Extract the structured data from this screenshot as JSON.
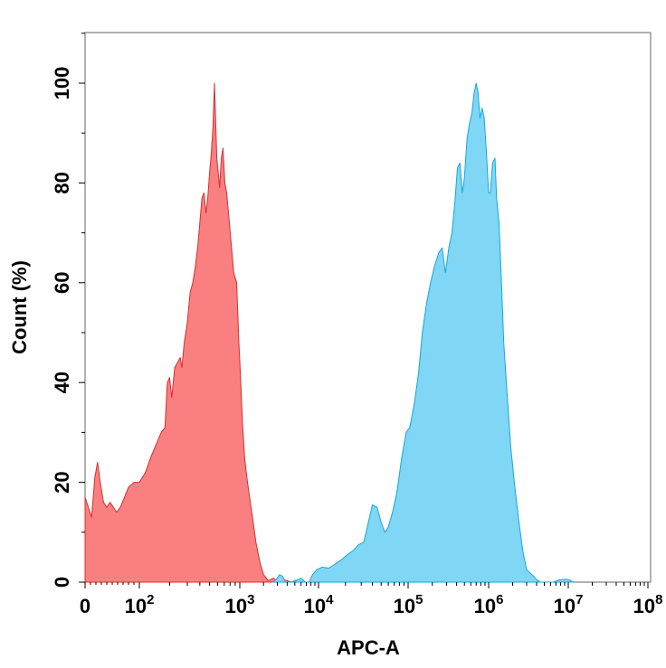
{
  "chart_data": {
    "type": "area",
    "xlabel": "APC-A",
    "ylabel": "Count (%)",
    "x_scale": "biexponential",
    "ylim": [
      0,
      110
    ],
    "grid": false,
    "y_ticks": [
      {
        "value": 0,
        "label": "0"
      },
      {
        "value": 20,
        "label": "20"
      },
      {
        "value": 40,
        "label": "40"
      },
      {
        "value": 60,
        "label": "60"
      },
      {
        "value": 80,
        "label": "80"
      },
      {
        "value": 100,
        "label": "100"
      }
    ],
    "x_ticks": [
      {
        "value": 0,
        "label": "0",
        "exp": ""
      },
      {
        "value": 100,
        "label": "10",
        "exp": "2"
      },
      {
        "value": 1000,
        "label": "10",
        "exp": "3"
      },
      {
        "value": 10000,
        "label": "10",
        "exp": "4"
      },
      {
        "value": 100000,
        "label": "10",
        "exp": "5"
      },
      {
        "value": 1000000,
        "label": "10",
        "exp": "6"
      },
      {
        "value": 10000000,
        "label": "10",
        "exp": "7"
      },
      {
        "value": 100000000,
        "label": "10",
        "exp": "8"
      }
    ],
    "series": [
      {
        "color": "#fa7f80",
        "stroke": "#d62f2f",
        "points": [
          [
            0,
            17
          ],
          [
            6,
            15
          ],
          [
            12,
            13
          ],
          [
            18,
            21
          ],
          [
            23,
            24
          ],
          [
            28,
            20
          ],
          [
            34,
            16
          ],
          [
            40,
            15
          ],
          [
            46,
            16
          ],
          [
            52,
            15
          ],
          [
            58,
            14
          ],
          [
            65,
            15
          ],
          [
            80,
            19
          ],
          [
            90,
            20
          ],
          [
            100,
            20
          ],
          [
            115,
            22
          ],
          [
            130,
            25
          ],
          [
            150,
            28
          ],
          [
            165,
            30
          ],
          [
            180,
            31
          ],
          [
            190,
            40
          ],
          [
            200,
            41
          ],
          [
            210,
            37
          ],
          [
            225,
            43
          ],
          [
            240,
            44
          ],
          [
            255,
            45
          ],
          [
            265,
            43
          ],
          [
            280,
            48
          ],
          [
            300,
            52
          ],
          [
            320,
            58
          ],
          [
            340,
            60
          ],
          [
            360,
            63
          ],
          [
            380,
            67
          ],
          [
            400,
            72
          ],
          [
            420,
            77
          ],
          [
            440,
            78
          ],
          [
            460,
            74
          ],
          [
            480,
            77
          ],
          [
            500,
            82
          ],
          [
            520,
            86
          ],
          [
            540,
            91
          ],
          [
            560,
            100
          ],
          [
            590,
            85
          ],
          [
            610,
            82
          ],
          [
            630,
            79
          ],
          [
            655,
            85
          ],
          [
            680,
            87
          ],
          [
            710,
            80
          ],
          [
            740,
            78
          ],
          [
            780,
            73
          ],
          [
            820,
            68
          ],
          [
            870,
            62
          ],
          [
            930,
            60
          ],
          [
            980,
            48
          ],
          [
            1030,
            40
          ],
          [
            1080,
            32
          ],
          [
            1150,
            25
          ],
          [
            1230,
            21
          ],
          [
            1330,
            17
          ],
          [
            1450,
            13
          ],
          [
            1600,
            8
          ],
          [
            1800,
            4
          ],
          [
            2000,
            1.5
          ],
          [
            2300,
            0.3
          ],
          [
            2700,
            0.8
          ],
          [
            3000,
            0
          ],
          [
            3600,
            0.5
          ],
          [
            4500,
            0
          ],
          [
            5200,
            0.4
          ],
          [
            6000,
            0
          ]
        ]
      },
      {
        "color": "#7fd6f5",
        "stroke": "#1aa7d7",
        "points": [
          [
            2600,
            0
          ],
          [
            2900,
            0.5
          ],
          [
            3200,
            1.5
          ],
          [
            3500,
            1.2
          ],
          [
            3800,
            0
          ],
          [
            4500,
            0
          ],
          [
            5200,
            0.3
          ],
          [
            6000,
            0.8
          ],
          [
            6800,
            0
          ],
          [
            7600,
            0
          ],
          [
            8400,
            1.5
          ],
          [
            9500,
            2.5
          ],
          [
            11000,
            3
          ],
          [
            13000,
            2.8
          ],
          [
            15000,
            3.5
          ],
          [
            18000,
            4.5
          ],
          [
            21000,
            5.5
          ],
          [
            25000,
            6.5
          ],
          [
            28000,
            7.5
          ],
          [
            32000,
            8
          ],
          [
            36000,
            12
          ],
          [
            40000,
            15.5
          ],
          [
            45000,
            15
          ],
          [
            50000,
            12
          ],
          [
            55000,
            10
          ],
          [
            60000,
            11
          ],
          [
            67000,
            14
          ],
          [
            75000,
            18
          ],
          [
            85000,
            25
          ],
          [
            95000,
            30
          ],
          [
            105000,
            31
          ],
          [
            120000,
            36
          ],
          [
            135000,
            42
          ],
          [
            150000,
            50
          ],
          [
            170000,
            56
          ],
          [
            190000,
            60
          ],
          [
            210000,
            63
          ],
          [
            240000,
            66
          ],
          [
            265000,
            67
          ],
          [
            290000,
            62
          ],
          [
            320000,
            67
          ],
          [
            350000,
            70
          ],
          [
            380000,
            76
          ],
          [
            410000,
            83
          ],
          [
            440000,
            84
          ],
          [
            470000,
            78
          ],
          [
            500000,
            81
          ],
          [
            540000,
            89
          ],
          [
            580000,
            92
          ],
          [
            620000,
            94
          ],
          [
            660000,
            98
          ],
          [
            700000,
            100
          ],
          [
            740000,
            98
          ],
          [
            780000,
            93
          ],
          [
            830000,
            95
          ],
          [
            880000,
            93
          ],
          [
            940000,
            86
          ],
          [
            1000000,
            78
          ],
          [
            1050000,
            78
          ],
          [
            1120000,
            84
          ],
          [
            1200000,
            85
          ],
          [
            1260000,
            77
          ],
          [
            1350000,
            72
          ],
          [
            1450000,
            60
          ],
          [
            1550000,
            48
          ],
          [
            1700000,
            38
          ],
          [
            1900000,
            27
          ],
          [
            2100000,
            20
          ],
          [
            2400000,
            12
          ],
          [
            2700000,
            6
          ],
          [
            3000000,
            2.5
          ],
          [
            3500000,
            1.5
          ],
          [
            4000000,
            0.5
          ],
          [
            4500000,
            0
          ],
          [
            6500000,
            0
          ],
          [
            7500000,
            0.4
          ],
          [
            9000000,
            0.6
          ],
          [
            10500000,
            0.4
          ],
          [
            11500000,
            0
          ]
        ]
      }
    ]
  }
}
